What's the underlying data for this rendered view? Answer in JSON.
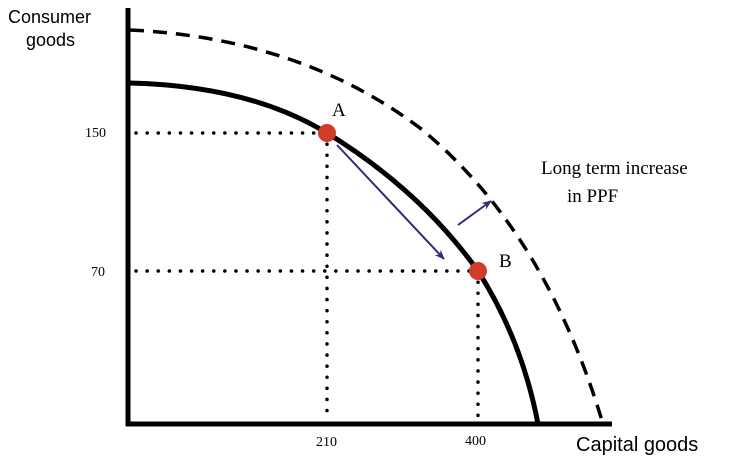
{
  "chart_data": {
    "type": "line",
    "title": "",
    "xlabel": "Capital goods",
    "ylabel": "Consumer goods",
    "x_ticks": [
      "210",
      "400"
    ],
    "y_ticks": [
      "150",
      "70"
    ],
    "points": [
      {
        "label": "A",
        "x": 210,
        "y": 150
      },
      {
        "label": "B",
        "x": 400,
        "y": 70
      }
    ],
    "curves": [
      {
        "style": "solid",
        "description": "PPF"
      },
      {
        "style": "dashed",
        "description": "shifted PPF"
      }
    ],
    "annotation": [
      "Long term increase",
      "in PPF"
    ],
    "grid": false,
    "colors": {
      "point": "#d13b2a",
      "arrow": "#2b2d7a",
      "axis": "#000000"
    }
  }
}
